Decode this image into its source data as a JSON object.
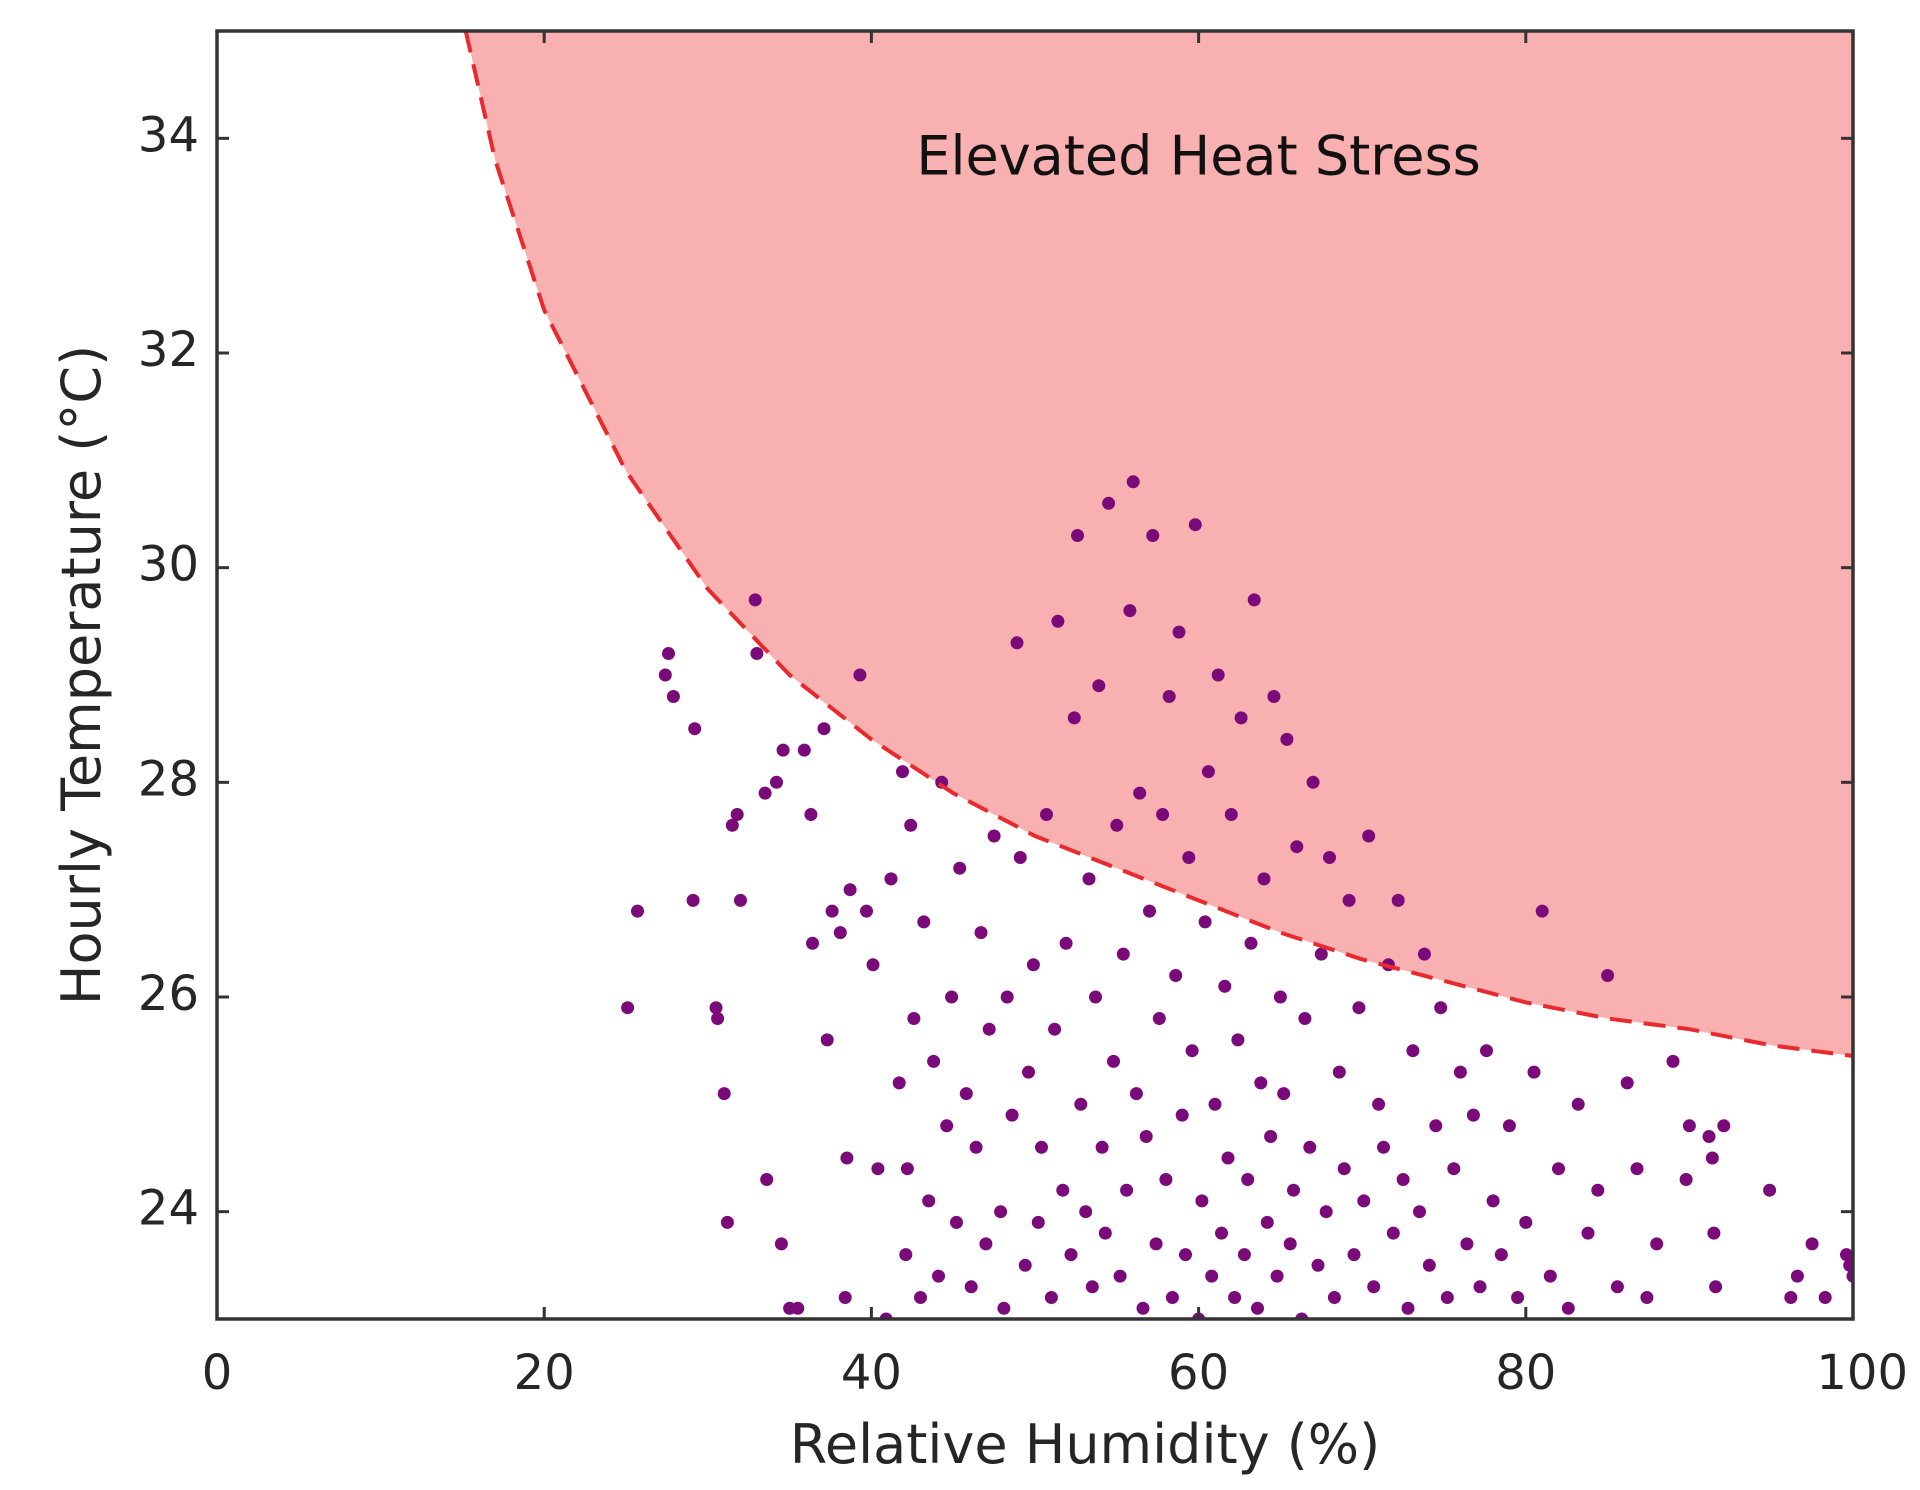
{
  "chart_data": {
    "type": "scatter",
    "xlabel": "Relative Humidity (%)",
    "ylabel": "Hourly Temperature (°C)",
    "xlim": [
      0,
      100
    ],
    "ylim": [
      23,
      35
    ],
    "xticks": [
      0,
      20,
      40,
      60,
      80,
      100
    ],
    "yticks": [
      24,
      26,
      28,
      30,
      32,
      34
    ],
    "grid": false,
    "annotation": {
      "text": "Elevated Heat Stress",
      "x": 60,
      "y": 33.8
    },
    "threshold_curve": {
      "style": "dashed",
      "color": "#e8292e",
      "fill_color": "#f9b0b0",
      "points": [
        [
          15.2,
          35
        ],
        [
          17,
          33.8
        ],
        [
          20,
          32.4
        ],
        [
          25,
          30.9
        ],
        [
          30,
          29.8
        ],
        [
          35,
          29
        ],
        [
          40,
          28.4
        ],
        [
          45,
          27.9
        ],
        [
          50,
          27.5
        ],
        [
          55,
          27.2
        ],
        [
          60,
          26.9
        ],
        [
          65,
          26.6
        ],
        [
          70,
          26.35
        ],
        [
          75,
          26.15
        ],
        [
          80,
          25.95
        ],
        [
          85,
          25.8
        ],
        [
          90,
          25.7
        ],
        [
          95,
          25.55
        ],
        [
          100,
          25.45
        ]
      ]
    },
    "series": [
      {
        "color": "#7a0a7a",
        "points": [
          [
            25.1,
            25.9
          ],
          [
            25.7,
            26.8
          ],
          [
            27.4,
            29.0
          ],
          [
            27.6,
            29.2
          ],
          [
            27.9,
            28.8
          ],
          [
            29.2,
            28.5
          ],
          [
            29.1,
            26.9
          ],
          [
            30.5,
            25.9
          ],
          [
            30.6,
            25.8
          ],
          [
            31.0,
            25.1
          ],
          [
            31.2,
            23.9
          ],
          [
            31.5,
            27.6
          ],
          [
            31.8,
            27.7
          ],
          [
            32.0,
            26.9
          ],
          [
            32.9,
            29.7
          ],
          [
            33.0,
            29.2
          ],
          [
            33.5,
            27.9
          ],
          [
            33.6,
            24.3
          ],
          [
            34.2,
            28.0
          ],
          [
            34.5,
            23.7
          ],
          [
            34.6,
            28.3
          ],
          [
            35.0,
            23.1
          ],
          [
            35.5,
            23.1
          ],
          [
            35.9,
            28.3
          ],
          [
            36.3,
            27.7
          ],
          [
            36.4,
            26.5
          ],
          [
            37.1,
            28.5
          ],
          [
            37.3,
            25.6
          ],
          [
            37.6,
            26.8
          ],
          [
            38.1,
            26.6
          ],
          [
            38.4,
            23.2
          ],
          [
            38.5,
            24.5
          ],
          [
            38.7,
            27.0
          ],
          [
            39.3,
            29.0
          ],
          [
            39.7,
            26.8
          ],
          [
            40.1,
            26.3
          ],
          [
            40.4,
            24.4
          ],
          [
            40.9,
            23.0
          ],
          [
            41.2,
            27.1
          ],
          [
            41.7,
            25.2
          ],
          [
            41.9,
            28.1
          ],
          [
            42.1,
            23.6
          ],
          [
            42.2,
            24.4
          ],
          [
            42.4,
            27.6
          ],
          [
            42.6,
            25.8
          ],
          [
            43.0,
            23.2
          ],
          [
            43.2,
            26.7
          ],
          [
            43.5,
            24.1
          ],
          [
            43.8,
            25.4
          ],
          [
            44.1,
            23.4
          ],
          [
            44.3,
            28.0
          ],
          [
            44.6,
            24.8
          ],
          [
            44.9,
            26.0
          ],
          [
            45.2,
            23.9
          ],
          [
            45.4,
            27.2
          ],
          [
            45.8,
            25.1
          ],
          [
            46.1,
            23.3
          ],
          [
            46.4,
            24.6
          ],
          [
            46.7,
            26.6
          ],
          [
            47.0,
            23.7
          ],
          [
            47.2,
            25.7
          ],
          [
            47.5,
            27.5
          ],
          [
            47.9,
            24.0
          ],
          [
            48.1,
            23.1
          ],
          [
            48.3,
            26.0
          ],
          [
            48.6,
            24.9
          ],
          [
            48.9,
            29.3
          ],
          [
            49.1,
            27.3
          ],
          [
            49.4,
            23.5
          ],
          [
            49.6,
            25.3
          ],
          [
            49.9,
            26.3
          ],
          [
            50.2,
            23.9
          ],
          [
            50.4,
            24.6
          ],
          [
            50.7,
            27.7
          ],
          [
            51.0,
            23.2
          ],
          [
            51.2,
            25.7
          ],
          [
            51.4,
            29.5
          ],
          [
            51.7,
            24.2
          ],
          [
            51.9,
            26.5
          ],
          [
            52.2,
            23.6
          ],
          [
            52.4,
            28.6
          ],
          [
            52.6,
            30.3
          ],
          [
            52.8,
            25.0
          ],
          [
            53.1,
            24.0
          ],
          [
            53.3,
            27.1
          ],
          [
            53.5,
            23.3
          ],
          [
            53.7,
            26.0
          ],
          [
            53.9,
            28.9
          ],
          [
            54.1,
            24.6
          ],
          [
            54.3,
            23.8
          ],
          [
            54.5,
            30.6
          ],
          [
            54.8,
            25.4
          ],
          [
            55.0,
            27.6
          ],
          [
            55.2,
            23.4
          ],
          [
            55.4,
            26.4
          ],
          [
            55.6,
            24.2
          ],
          [
            55.8,
            29.6
          ],
          [
            56.0,
            30.8
          ],
          [
            56.2,
            25.1
          ],
          [
            56.4,
            27.9
          ],
          [
            56.6,
            23.1
          ],
          [
            56.8,
            24.7
          ],
          [
            57.0,
            26.8
          ],
          [
            57.2,
            30.3
          ],
          [
            57.4,
            23.7
          ],
          [
            57.6,
            25.8
          ],
          [
            57.8,
            27.7
          ],
          [
            58.0,
            24.3
          ],
          [
            58.2,
            28.8
          ],
          [
            58.4,
            23.2
          ],
          [
            58.6,
            26.2
          ],
          [
            58.8,
            29.4
          ],
          [
            59.0,
            24.9
          ],
          [
            59.2,
            23.6
          ],
          [
            59.4,
            27.3
          ],
          [
            59.6,
            25.5
          ],
          [
            59.8,
            30.4
          ],
          [
            60.0,
            23.0
          ],
          [
            60.2,
            24.1
          ],
          [
            60.4,
            26.7
          ],
          [
            60.6,
            28.1
          ],
          [
            60.8,
            23.4
          ],
          [
            61.0,
            25.0
          ],
          [
            61.2,
            29.0
          ],
          [
            61.4,
            23.8
          ],
          [
            61.6,
            26.1
          ],
          [
            61.8,
            24.5
          ],
          [
            62.0,
            27.7
          ],
          [
            62.2,
            23.2
          ],
          [
            62.4,
            25.6
          ],
          [
            62.6,
            28.6
          ],
          [
            62.8,
            23.6
          ],
          [
            63.0,
            24.3
          ],
          [
            63.2,
            26.5
          ],
          [
            63.4,
            29.7
          ],
          [
            63.6,
            23.1
          ],
          [
            63.8,
            25.2
          ],
          [
            64.0,
            27.1
          ],
          [
            64.2,
            23.9
          ],
          [
            64.4,
            24.7
          ],
          [
            64.6,
            28.8
          ],
          [
            64.8,
            23.4
          ],
          [
            65.0,
            26.0
          ],
          [
            65.2,
            25.1
          ],
          [
            65.4,
            28.4
          ],
          [
            65.6,
            23.7
          ],
          [
            65.8,
            24.2
          ],
          [
            66.0,
            27.4
          ],
          [
            66.3,
            23.0
          ],
          [
            66.5,
            25.8
          ],
          [
            66.8,
            24.6
          ],
          [
            67.0,
            28.0
          ],
          [
            67.3,
            23.5
          ],
          [
            67.5,
            26.4
          ],
          [
            67.8,
            24.0
          ],
          [
            68.0,
            27.3
          ],
          [
            68.3,
            23.2
          ],
          [
            68.6,
            25.3
          ],
          [
            68.9,
            24.4
          ],
          [
            69.2,
            26.9
          ],
          [
            69.5,
            23.6
          ],
          [
            69.8,
            25.9
          ],
          [
            70.1,
            24.1
          ],
          [
            70.4,
            27.5
          ],
          [
            70.7,
            23.3
          ],
          [
            71.0,
            25.0
          ],
          [
            71.3,
            24.6
          ],
          [
            71.6,
            26.3
          ],
          [
            71.9,
            23.8
          ],
          [
            72.2,
            26.9
          ],
          [
            72.5,
            24.3
          ],
          [
            72.8,
            23.1
          ],
          [
            73.1,
            25.5
          ],
          [
            73.5,
            24.0
          ],
          [
            73.8,
            26.4
          ],
          [
            74.1,
            23.5
          ],
          [
            74.5,
            24.8
          ],
          [
            74.8,
            25.9
          ],
          [
            75.2,
            23.2
          ],
          [
            75.6,
            24.4
          ],
          [
            76.0,
            25.3
          ],
          [
            76.4,
            23.7
          ],
          [
            76.8,
            24.9
          ],
          [
            77.2,
            23.3
          ],
          [
            77.6,
            25.5
          ],
          [
            78.0,
            24.1
          ],
          [
            78.5,
            23.6
          ],
          [
            79.0,
            24.8
          ],
          [
            79.5,
            23.2
          ],
          [
            80.0,
            23.9
          ],
          [
            80.5,
            25.3
          ],
          [
            81.0,
            26.8
          ],
          [
            81.5,
            23.4
          ],
          [
            82.0,
            24.4
          ],
          [
            82.6,
            23.1
          ],
          [
            83.2,
            25.0
          ],
          [
            83.8,
            23.8
          ],
          [
            84.4,
            24.2
          ],
          [
            85.0,
            26.2
          ],
          [
            85.6,
            23.3
          ],
          [
            86.2,
            25.2
          ],
          [
            86.8,
            24.4
          ],
          [
            87.4,
            23.2
          ],
          [
            88.0,
            23.7
          ],
          [
            89.0,
            25.4
          ],
          [
            89.8,
            24.3
          ],
          [
            90.0,
            24.8
          ],
          [
            91.2,
            24.7
          ],
          [
            91.4,
            24.5
          ],
          [
            91.5,
            23.8
          ],
          [
            91.6,
            23.3
          ],
          [
            92.1,
            24.8
          ],
          [
            94.9,
            24.2
          ],
          [
            96.2,
            23.2
          ],
          [
            96.6,
            23.4
          ],
          [
            97.5,
            23.7
          ],
          [
            98.3,
            23.2
          ],
          [
            99.6,
            23.6
          ],
          [
            99.8,
            23.5
          ],
          [
            100.0,
            23.4
          ]
        ]
      }
    ]
  }
}
